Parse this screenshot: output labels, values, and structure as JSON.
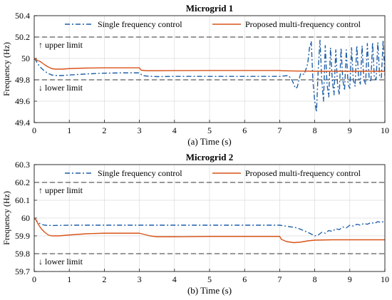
{
  "chart_data": [
    {
      "type": "line",
      "title": "Microgrid 1",
      "xlabel": "(a) Time (s)",
      "ylabel": "Frequency (Hz)",
      "xlim": [
        0,
        10
      ],
      "ylim": [
        49.4,
        50.4
      ],
      "xticks": [
        0,
        1,
        2,
        3,
        4,
        5,
        6,
        7,
        8,
        9,
        10
      ],
      "yticks": [
        "49.4",
        "49.6",
        "49.8",
        "50",
        "50.2",
        "50.4"
      ],
      "grid": true,
      "legend_position": "top",
      "reference_lines": [
        {
          "y": 50.2,
          "label": "↑ upper limit"
        },
        {
          "y": 49.8,
          "label": "↓ lower limit"
        }
      ],
      "series": [
        {
          "name": "Single frequency control",
          "style": "dashdot",
          "color": "#1f5fa8",
          "x": [
            0,
            0.05,
            0.1,
            0.2,
            0.3,
            0.4,
            0.5,
            0.6,
            0.8,
            1.0,
            1.5,
            2.0,
            2.5,
            3.0,
            3.05,
            3.1,
            3.2,
            3.5,
            4.0,
            5.0,
            6.0,
            7.0,
            7.25,
            7.35,
            7.45,
            7.5,
            7.55,
            7.6,
            7.7,
            7.8,
            7.85,
            7.9,
            7.95,
            8.0,
            8.05,
            8.1,
            8.15,
            8.2,
            8.25,
            8.3,
            8.35,
            8.4,
            8.45,
            8.5,
            8.55,
            8.6,
            8.65,
            8.7,
            8.75,
            8.8,
            8.85,
            8.9,
            8.95,
            9.0,
            9.05,
            9.1,
            9.15,
            9.2,
            9.25,
            9.3,
            9.35,
            9.4,
            9.45,
            9.5,
            9.55,
            9.6,
            9.65,
            9.7,
            9.75,
            9.8,
            9.85,
            9.9,
            9.95,
            10.0
          ],
          "y": [
            50.0,
            49.98,
            49.95,
            49.91,
            49.88,
            49.86,
            49.845,
            49.84,
            49.84,
            49.845,
            49.855,
            49.862,
            49.865,
            49.865,
            49.85,
            49.84,
            49.835,
            49.83,
            49.832,
            49.832,
            49.832,
            49.832,
            49.84,
            49.8,
            49.72,
            49.73,
            49.8,
            49.86,
            49.85,
            49.95,
            50.1,
            50.16,
            49.78,
            49.6,
            49.5,
            49.9,
            50.17,
            49.8,
            49.6,
            50.12,
            49.76,
            49.64,
            50.1,
            49.8,
            49.66,
            50.08,
            49.76,
            49.66,
            50.1,
            49.8,
            49.7,
            50.08,
            49.76,
            49.72,
            50.1,
            49.8,
            49.74,
            50.12,
            49.82,
            49.76,
            50.12,
            49.8,
            49.76,
            50.14,
            49.82,
            49.78,
            50.15,
            49.82,
            49.8,
            50.15,
            49.84,
            49.82,
            50.17,
            49.84
          ]
        },
        {
          "name": "Proposed multi-frequency control",
          "style": "solid",
          "color": "#d95319",
          "x": [
            0,
            0.05,
            0.1,
            0.15,
            0.2,
            0.3,
            0.4,
            0.5,
            0.6,
            0.8,
            1.0,
            1.5,
            2.0,
            3.0,
            3.05,
            3.2,
            3.5,
            4.0,
            5.0,
            7.0,
            7.05,
            7.5,
            8.0,
            9.0,
            10.0
          ],
          "y": [
            50.0,
            49.99,
            49.98,
            49.975,
            49.965,
            49.94,
            49.92,
            49.905,
            49.9,
            49.9,
            49.905,
            49.91,
            49.912,
            49.912,
            49.89,
            49.885,
            49.885,
            49.886,
            49.887,
            49.887,
            49.885,
            49.882,
            49.88,
            49.88,
            49.88
          ]
        }
      ]
    },
    {
      "type": "line",
      "title": "Microgrid 2",
      "xlabel": "(b) Time (s)",
      "ylabel": "Frequency (Hz)",
      "xlim": [
        0,
        10
      ],
      "ylim": [
        59.7,
        60.3
      ],
      "xticks": [
        0,
        1,
        2,
        3,
        4,
        5,
        6,
        7,
        8,
        9,
        10
      ],
      "yticks": [
        "59.7",
        "59.8",
        "59.9",
        "60",
        "60.1",
        "60.2",
        "60.3"
      ],
      "grid": true,
      "legend_position": "top",
      "reference_lines": [
        {
          "y": 60.2,
          "label": "↑ upper limit"
        },
        {
          "y": 59.8,
          "label": "↓ lower limit"
        }
      ],
      "series": [
        {
          "name": "Single frequency control",
          "style": "dashdot",
          "color": "#1f5fa8",
          "x": [
            0,
            0.05,
            0.1,
            0.2,
            0.3,
            0.5,
            1.0,
            2.0,
            3.0,
            4.0,
            5.0,
            6.0,
            7.0,
            7.5,
            7.8,
            8.0,
            8.1,
            8.2,
            8.3,
            8.4,
            8.5,
            8.6,
            8.7,
            8.8,
            8.9,
            9.0,
            9.1,
            9.2,
            9.3,
            9.4,
            9.5,
            9.6,
            9.7,
            9.8,
            9.9,
            10.0
          ],
          "y": [
            60.0,
            59.99,
            59.975,
            59.965,
            59.96,
            59.958,
            59.96,
            59.96,
            59.96,
            59.96,
            59.96,
            59.96,
            59.96,
            59.945,
            59.92,
            59.9,
            59.905,
            59.92,
            59.915,
            59.93,
            59.925,
            59.94,
            59.935,
            59.95,
            59.945,
            59.96,
            59.955,
            59.965,
            59.96,
            59.97,
            59.965,
            59.975,
            59.97,
            59.98,
            59.975,
            59.985
          ]
        },
        {
          "name": "Proposed multi-frequency control",
          "style": "solid",
          "color": "#d95319",
          "x": [
            0,
            0.05,
            0.1,
            0.2,
            0.3,
            0.4,
            0.5,
            0.7,
            1.0,
            1.5,
            2.0,
            3.0,
            3.1,
            3.3,
            3.5,
            4.0,
            5.0,
            6.0,
            7.0,
            7.05,
            7.2,
            7.4,
            7.6,
            7.8,
            8.0,
            8.5,
            9.0,
            10.0
          ],
          "y": [
            60.0,
            59.99,
            59.97,
            59.94,
            59.92,
            59.905,
            59.9,
            59.9,
            59.905,
            59.912,
            59.915,
            59.915,
            59.91,
            59.9,
            59.895,
            59.895,
            59.897,
            59.897,
            59.897,
            59.88,
            59.868,
            59.862,
            59.865,
            59.872,
            59.876,
            59.878,
            59.878,
            59.878
          ]
        }
      ]
    }
  ]
}
